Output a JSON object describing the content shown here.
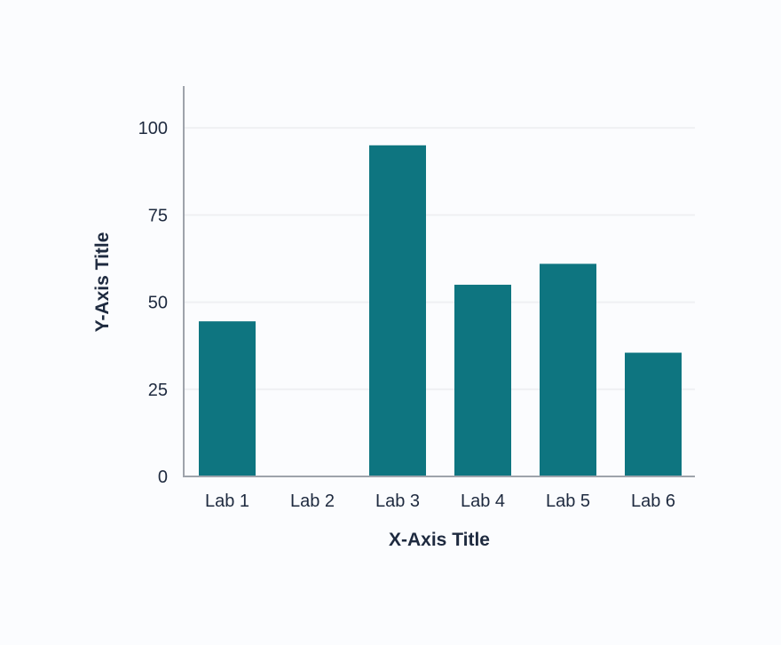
{
  "chart_data": {
    "type": "bar",
    "title": "",
    "xlabel": "X-Axis Title",
    "ylabel": "Y-Axis Title",
    "categories": [
      "Lab 1",
      "Lab 2",
      "Lab 3",
      "Lab 4",
      "Lab 5",
      "Lab 6"
    ],
    "values": [
      44.5,
      0,
      95,
      55,
      61,
      35.5
    ],
    "ylim": [
      0,
      112
    ],
    "yticks": [
      0,
      25,
      50,
      75,
      100
    ],
    "grid": true,
    "legend": "none",
    "colors": {
      "bar": "#0e7580",
      "text": "#1e2a3f",
      "axis": "#9ea3ab",
      "grid": "#eff0f3",
      "background": "#fbfcfe"
    }
  }
}
